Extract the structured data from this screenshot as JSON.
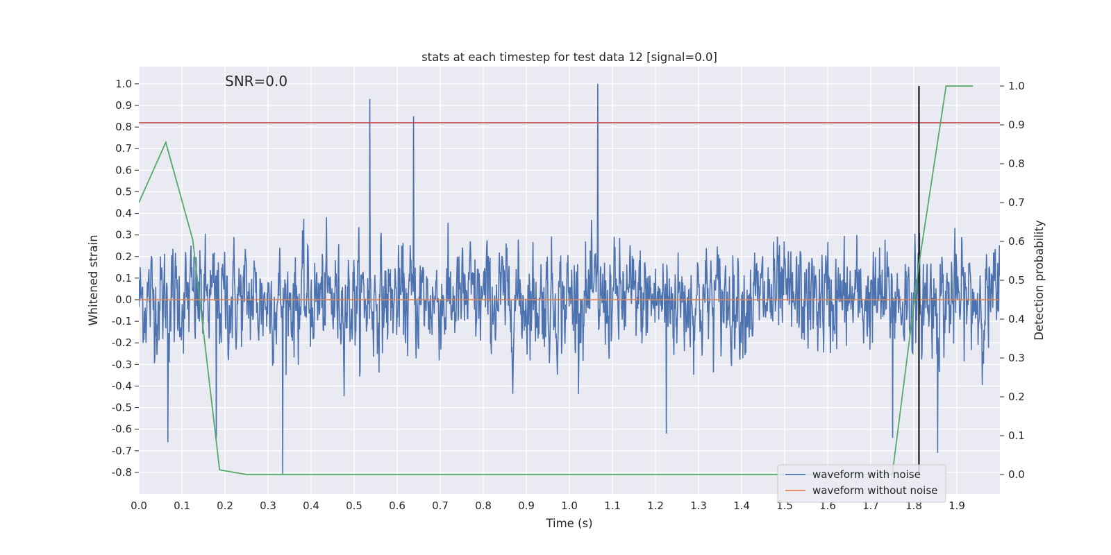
{
  "chart_data": {
    "type": "line",
    "title": "stats at each timestep for test data 12 [signal=0.0]",
    "xlabel": "Time (s)",
    "ylabel": "Whitened strain",
    "y2label": "Detection probability",
    "xlim": [
      0.0,
      2.0
    ],
    "ylim": [
      -0.9,
      1.08
    ],
    "y2lim": [
      -0.05,
      1.05
    ],
    "xticks": [
      "0.0",
      "0.1",
      "0.2",
      "0.3",
      "0.4",
      "0.5",
      "0.6",
      "0.7",
      "0.8",
      "0.9",
      "1.0",
      "1.1",
      "1.2",
      "1.3",
      "1.4",
      "1.5",
      "1.6",
      "1.7",
      "1.8",
      "1.9"
    ],
    "yticks": [
      "1.0",
      "0.9",
      "0.8",
      "0.7",
      "0.6",
      "0.5",
      "0.4",
      "0.3",
      "0.2",
      "0.1",
      "0.0",
      "-0.1",
      "-0.2",
      "-0.3",
      "-0.4",
      "-0.5",
      "-0.6",
      "-0.7",
      "-0.8"
    ],
    "y2ticks": [
      "1.0",
      "0.9",
      "0.8",
      "0.7",
      "0.6",
      "0.5",
      "0.4",
      "0.3",
      "0.2",
      "0.1",
      "0.0"
    ],
    "grid": true,
    "legend_position": "lower-right",
    "annotation": "SNR=0.0",
    "series": [
      {
        "name": "waveform with noise",
        "color": "#4c72b0",
        "axis": "left",
        "x_range": [
          0.0,
          2.0
        ],
        "num_samples": 2048,
        "max": 1.0,
        "min": -0.81,
        "peaks": [
          {
            "x": 0.536,
            "y": 0.93
          },
          {
            "x": 0.638,
            "y": 0.85
          },
          {
            "x": 1.066,
            "y": 1.0
          },
          {
            "x": 0.334,
            "y": -0.81
          },
          {
            "x": 0.067,
            "y": -0.66
          },
          {
            "x": 0.18,
            "y": -0.64
          },
          {
            "x": 1.225,
            "y": -0.62
          },
          {
            "x": 1.855,
            "y": -0.71
          },
          {
            "x": 1.751,
            "y": -0.64
          }
        ]
      },
      {
        "name": "waveform without noise",
        "color": "#dd8452",
        "axis": "left",
        "x": [
          0.0,
          2.0
        ],
        "y": [
          0.0,
          0.0
        ]
      },
      {
        "name": "",
        "color": "#55a868",
        "axis": "right",
        "x": [
          0.0,
          0.0625,
          0.125,
          0.1875,
          0.25,
          0.3125,
          1.75,
          1.8125,
          1.875,
          1.9375
        ],
        "y": [
          0.7,
          0.855,
          0.605,
          0.012,
          0.0,
          0.0,
          0.0,
          0.545,
          1.0,
          1.0
        ]
      }
    ],
    "hlines": [
      {
        "axis": "left",
        "y": 0.82,
        "color": "#c44e52"
      }
    ],
    "vlines": [
      {
        "x": 1.812,
        "color": "#000000"
      }
    ]
  }
}
